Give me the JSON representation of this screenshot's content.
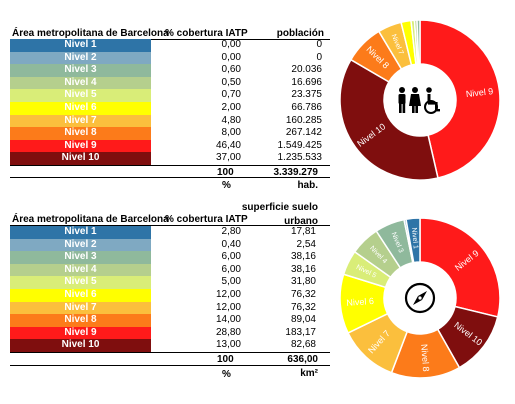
{
  "tables": [
    {
      "id": "poblacion",
      "region_header": "Área metropolitana de Barcelona",
      "coverage_header": "% cobertura IATP",
      "value_header_line1": "",
      "value_header_line2": "población",
      "rows": [
        {
          "level": "Nivel 1",
          "coverage": "0,00",
          "value": "0"
        },
        {
          "level": "Nivel 2",
          "coverage": "0,00",
          "value": "0"
        },
        {
          "level": "Nivel 3",
          "coverage": "0,60",
          "value": "20.036"
        },
        {
          "level": "Nivel 4",
          "coverage": "0,50",
          "value": "16.696"
        },
        {
          "level": "Nivel 5",
          "coverage": "0,70",
          "value": "23.375"
        },
        {
          "level": "Nivel 6",
          "coverage": "2,00",
          "value": "66.786"
        },
        {
          "level": "Nivel 7",
          "coverage": "4,80",
          "value": "160.285"
        },
        {
          "level": "Nivel 8",
          "coverage": "8,00",
          "value": "267.142"
        },
        {
          "level": "Nivel 9",
          "coverage": "46,40",
          "value": "1.549.425"
        },
        {
          "level": "Nivel 10",
          "coverage": "37,00",
          "value": "1.235.533"
        }
      ],
      "total_coverage": "100",
      "total_value": "3.339.279",
      "unit_coverage": "%",
      "unit_value": "hab."
    },
    {
      "id": "superficie",
      "region_header": "Área metropolitana de Barcelona",
      "coverage_header": "% cobertura IATP",
      "value_header_line1": "superficie suelo",
      "value_header_line2": "urbano",
      "rows": [
        {
          "level": "Nivel 1",
          "coverage": "2,80",
          "value": "17,81"
        },
        {
          "level": "Nivel 2",
          "coverage": "0,40",
          "value": "2,54"
        },
        {
          "level": "Nivel 3",
          "coverage": "6,00",
          "value": "38,16"
        },
        {
          "level": "Nivel 4",
          "coverage": "6,00",
          "value": "38,16"
        },
        {
          "level": "Nivel 5",
          "coverage": "5,00",
          "value": "31,80"
        },
        {
          "level": "Nivel 6",
          "coverage": "12,00",
          "value": "76,32"
        },
        {
          "level": "Nivel 7",
          "coverage": "12,00",
          "value": "76,32"
        },
        {
          "level": "Nivel 8",
          "coverage": "14,00",
          "value": "89,04"
        },
        {
          "level": "Nivel 9",
          "coverage": "28,80",
          "value": "183,17"
        },
        {
          "level": "Nivel 10",
          "coverage": "13,00",
          "value": "82,68"
        }
      ],
      "total_coverage": "100",
      "total_value": "636,00",
      "unit_coverage": "%",
      "unit_value": "km²"
    }
  ],
  "level_colors": [
    "#2e74a7",
    "#7fa9c2",
    "#8fb99c",
    "#b5cf8d",
    "#d9ed78",
    "#ffff00",
    "#fbbf3d",
    "#fc7b1a",
    "#ff1a1a",
    "#7f0e0e"
  ],
  "level_text_colors": [
    "#ffffff",
    "#ffffff",
    "#ffffff",
    "#ffffff",
    "#ffffff",
    "#ffffff",
    "#ffffff",
    "#ffffff",
    "#ffffff",
    "#ffffff"
  ],
  "chart_data": [
    {
      "type": "pie",
      "variant": "donut",
      "categories": [
        "Nivel 1",
        "Nivel 2",
        "Nivel 3",
        "Nivel 4",
        "Nivel 5",
        "Nivel 6",
        "Nivel 7",
        "Nivel 8",
        "Nivel 9",
        "Nivel 10"
      ],
      "values": [
        0,
        0,
        0.6,
        0.5,
        0.7,
        2.0,
        4.8,
        8.0,
        46.4,
        37.0
      ],
      "slice_labels": [
        "",
        "",
        "",
        "",
        "",
        "",
        "Nivel 7",
        "Nivel 8",
        "Nivel 9",
        "Nivel 10"
      ],
      "center_icon": "people-wheelchair-icon",
      "title": ""
    },
    {
      "type": "pie",
      "variant": "donut",
      "categories": [
        "Nivel 1",
        "Nivel 2",
        "Nivel 3",
        "Nivel 4",
        "Nivel 5",
        "Nivel 6",
        "Nivel 7",
        "Nivel 8",
        "Nivel 9",
        "Nivel 10"
      ],
      "values": [
        2.8,
        0.4,
        6.0,
        6.0,
        5.0,
        12.0,
        12.0,
        14.0,
        28.8,
        13.0
      ],
      "slice_labels": [
        "Nivel 1",
        "",
        "Nivel 3",
        "Nivel 4",
        "Nivel 5",
        "Nivel 6",
        "Nivel 7",
        "Nivel 8",
        "Nivel 9",
        "Nivel 10"
      ],
      "center_icon": "compass-icon",
      "title": ""
    }
  ]
}
